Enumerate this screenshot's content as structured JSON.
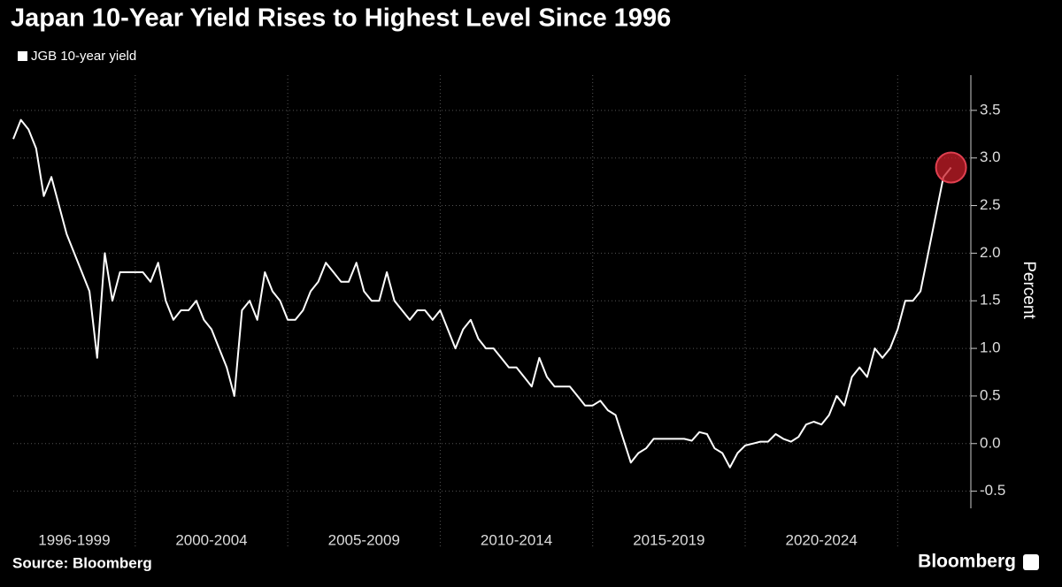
{
  "chart_data": {
    "type": "line",
    "title": "Japan 10-Year Yield Rises to Highest Level Since 1996",
    "y_label": "Percent",
    "source": "Source: Bloomberg",
    "brand": "Bloomberg",
    "categories": [
      "1996-1999",
      "2000-2004",
      "2005-2009",
      "2010-2014",
      "2015-2019",
      "2020-2024",
      null
    ],
    "xlim": [
      1996,
      2027.4
    ],
    "xticks": [
      2000,
      2005,
      2010,
      2015,
      2020,
      2025
    ],
    "x": [
      1996,
      1996.25,
      1996.5,
      1996.75,
      1997,
      1997.25,
      1997.5,
      1997.75,
      1998,
      1998.25,
      1998.5,
      1998.75,
      1999,
      1999.25,
      1999.5,
      1999.75,
      2000,
      2000.25,
      2000.5,
      2000.75,
      2001,
      2001.25,
      2001.5,
      2001.75,
      2002,
      2002.25,
      2002.5,
      2002.75,
      2003,
      2003.25,
      2003.5,
      2003.75,
      2004,
      2004.25,
      2004.5,
      2004.75,
      2005,
      2005.25,
      2005.5,
      2005.75,
      2006,
      2006.25,
      2006.5,
      2006.75,
      2007,
      2007.25,
      2007.5,
      2007.75,
      2008,
      2008.25,
      2008.5,
      2008.75,
      2009,
      2009.25,
      2009.5,
      2009.75,
      2010,
      2010.25,
      2010.5,
      2010.75,
      2011,
      2011.25,
      2011.5,
      2011.75,
      2012,
      2012.25,
      2012.5,
      2012.75,
      2013,
      2013.25,
      2013.5,
      2013.75,
      2014,
      2014.25,
      2014.5,
      2014.75,
      2015,
      2015.25,
      2015.5,
      2015.75,
      2016,
      2016.25,
      2016.5,
      2016.75,
      2017,
      2017.25,
      2017.5,
      2017.75,
      2018,
      2018.25,
      2018.5,
      2018.75,
      2019,
      2019.25,
      2019.5,
      2019.75,
      2020,
      2020.25,
      2020.5,
      2020.75,
      2021,
      2021.25,
      2021.5,
      2021.75,
      2022,
      2022.25,
      2022.5,
      2022.75,
      2023,
      2023.25,
      2023.5,
      2023.75,
      2024,
      2024.25,
      2024.5,
      2024.75,
      2025,
      2025.25,
      2025.5,
      2025.75,
      2026,
      2026.25,
      2026.5,
      2026.75
    ],
    "series": [
      {
        "name": "JGB 10-year yield",
        "color": "#ffffff",
        "values": [
          3.2,
          3.4,
          3.3,
          3.1,
          2.6,
          2.8,
          2.5,
          2.2,
          2.0,
          1.8,
          1.6,
          0.9,
          2.0,
          1.5,
          1.8,
          1.8,
          1.8,
          1.8,
          1.7,
          1.9,
          1.5,
          1.3,
          1.4,
          1.4,
          1.5,
          1.3,
          1.2,
          1.0,
          0.8,
          0.5,
          1.4,
          1.5,
          1.3,
          1.8,
          1.6,
          1.5,
          1.3,
          1.3,
          1.4,
          1.6,
          1.7,
          1.9,
          1.8,
          1.7,
          1.7,
          1.9,
          1.6,
          1.5,
          1.5,
          1.8,
          1.5,
          1.4,
          1.3,
          1.4,
          1.4,
          1.3,
          1.4,
          1.2,
          1.0,
          1.2,
          1.3,
          1.1,
          1.0,
          1.0,
          0.9,
          0.8,
          0.8,
          0.7,
          0.6,
          0.9,
          0.7,
          0.6,
          0.6,
          0.6,
          0.5,
          0.4,
          0.4,
          0.45,
          0.35,
          0.3,
          0.05,
          -0.2,
          -0.1,
          -0.05,
          0.05,
          0.05,
          0.05,
          0.05,
          0.05,
          0.03,
          0.12,
          0.1,
          -0.05,
          -0.1,
          -0.25,
          -0.1,
          -0.02,
          0.0,
          0.02,
          0.02,
          0.1,
          0.05,
          0.02,
          0.07,
          0.2,
          0.23,
          0.2,
          0.3,
          0.5,
          0.4,
          0.7,
          0.8,
          0.7,
          1.0,
          0.9,
          1.0,
          1.2,
          1.5,
          1.5,
          1.6,
          2.0,
          2.4,
          2.8,
          2.9
        ]
      }
    ],
    "ylim": [
      -0.68,
      3.87
    ],
    "yticks": [
      {
        "value": -0.5,
        "label": "-0.5"
      },
      {
        "value": 0,
        "label": "0.0"
      },
      0.5,
      {
        "value": 1,
        "label": "1.0"
      },
      1.5,
      {
        "value": 2,
        "label": "2.0"
      },
      2.5,
      {
        "value": 3,
        "label": "3.0"
      },
      3.5
    ],
    "grid": true
  }
}
